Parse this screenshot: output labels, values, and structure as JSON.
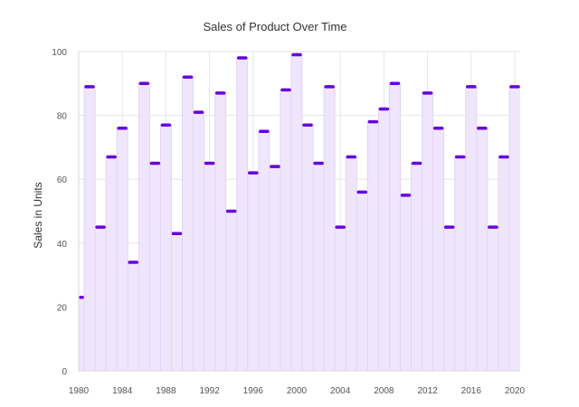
{
  "chart_data": {
    "type": "area",
    "step": "center",
    "title": "Sales of Product Over Time",
    "xlabel": "",
    "ylabel": "Sales in Units",
    "x": [
      1980,
      1981,
      1982,
      1983,
      1984,
      1985,
      1986,
      1987,
      1988,
      1989,
      1990,
      1991,
      1992,
      1993,
      1994,
      1995,
      1996,
      1997,
      1998,
      1999,
      2000,
      2001,
      2002,
      2003,
      2004,
      2005,
      2006,
      2007,
      2008,
      2009,
      2010,
      2011,
      2012,
      2013,
      2014,
      2015,
      2016,
      2017,
      2018,
      2019,
      2020
    ],
    "series": [
      {
        "name": "Sales",
        "values": [
          23,
          89,
          45,
          67,
          76,
          34,
          90,
          65,
          77,
          43,
          92,
          81,
          65,
          87,
          50,
          98,
          62,
          75,
          64,
          88,
          99,
          77,
          65,
          89,
          45,
          67,
          56,
          78,
          82,
          90,
          55,
          65,
          87,
          76,
          45,
          67,
          89,
          76,
          45,
          67,
          89
        ]
      }
    ],
    "xlim": [
      1980,
      2020.5
    ],
    "ylim": [
      0,
      100
    ],
    "x_ticks": [
      "1980",
      "1984",
      "1988",
      "1992",
      "1996",
      "2000",
      "2004",
      "2008",
      "2012",
      "2016",
      "2020"
    ],
    "y_ticks": [
      "0",
      "20",
      "40",
      "60",
      "80",
      "100"
    ],
    "grid": true,
    "colors": {
      "fill": "#efe6fb",
      "border": "#e2d4f8",
      "marker": "#6600dd"
    }
  }
}
